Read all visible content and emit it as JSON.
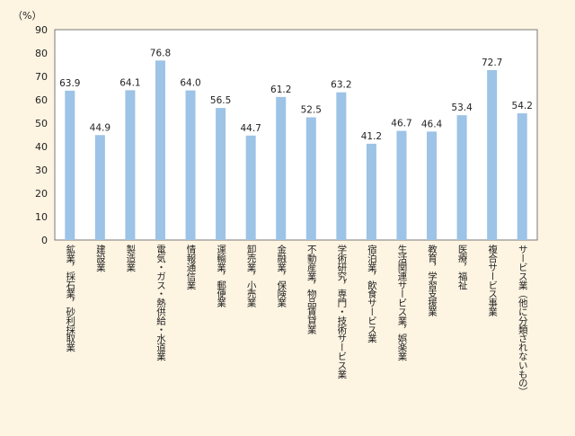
{
  "chart_data": {
    "type": "bar",
    "ylabel": "（%）",
    "ylim": [
      0,
      90
    ],
    "yticks": [
      0,
      10,
      20,
      30,
      40,
      50,
      60,
      70,
      80,
      90
    ],
    "grid": false,
    "bar_color": "#9dc3e6",
    "background_color": "#fdf4e2",
    "categories": [
      "鉱業，採石業，砂利採取業",
      "建設業",
      "製造業",
      "電気・ガス・熱供給・水道業",
      "情報通信業",
      "運輸業，郵便業",
      "卸売業，小売業",
      "金融業，保険業",
      "不動産業，物品賃貸業",
      "学術研究，専門・技術サービス業",
      "宿泊業，飲食サービス業",
      "生活関連サービス業，娯楽業",
      "教育，学習支援業",
      "医療，福祉",
      "複合サービス事業",
      "サービス業（他に分類されないもの）"
    ],
    "values": [
      63.9,
      44.9,
      64.1,
      76.8,
      64.0,
      56.5,
      44.7,
      61.2,
      52.5,
      63.2,
      41.2,
      46.7,
      46.4,
      53.4,
      72.7,
      54.2
    ],
    "value_labels": [
      "63.9",
      "44.9",
      "64.1",
      "76.8",
      "64.0",
      "56.5",
      "44.7",
      "61.2",
      "52.5",
      "63.2",
      "41.2",
      "46.7",
      "46.4",
      "53.4",
      "72.7",
      "54.2"
    ]
  }
}
